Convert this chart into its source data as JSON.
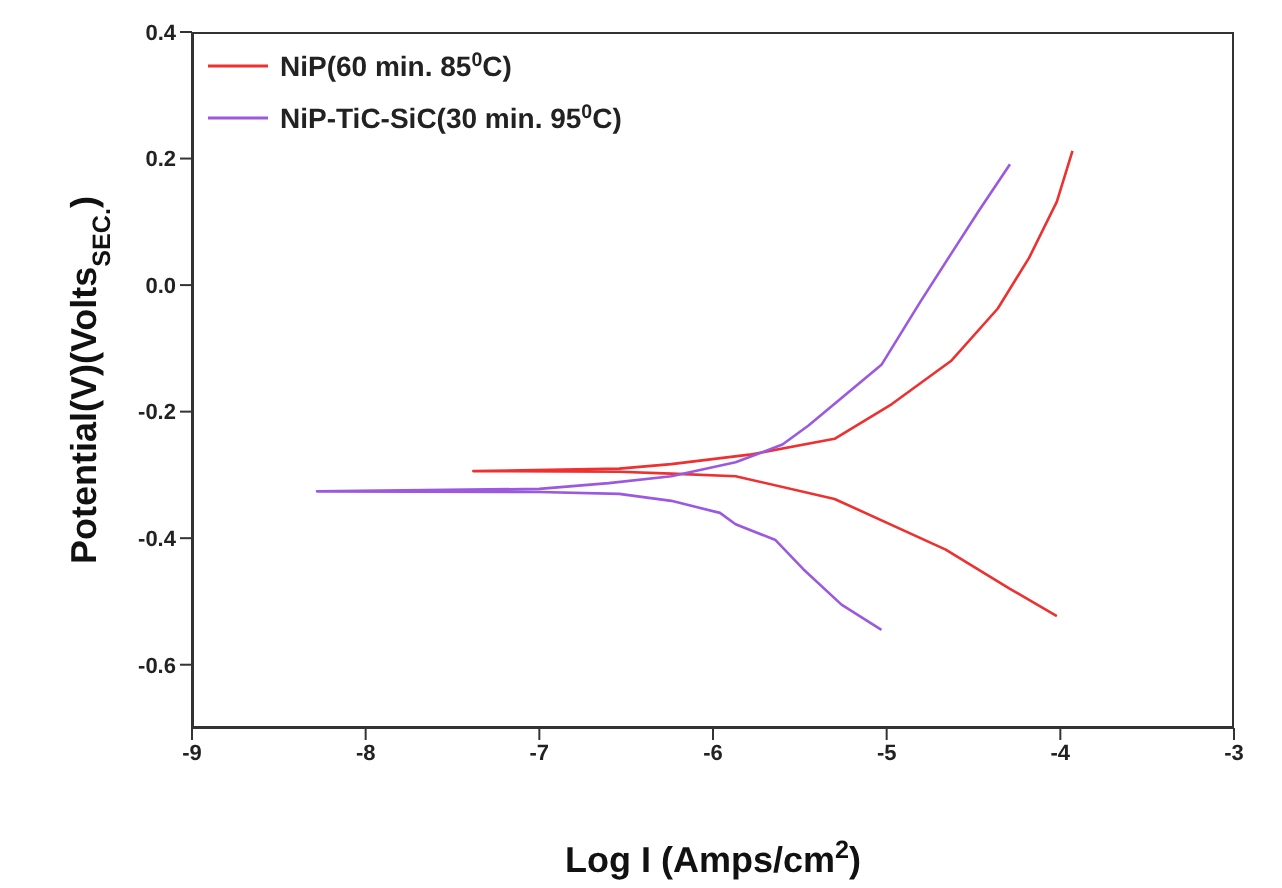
{
  "chart_data": {
    "type": "line",
    "xlabel": "Log I (Amps/cm$^{2}$)",
    "ylabel": "Potential(V)(Volts$_{SEC.}$)",
    "xlim": [
      -9,
      -3
    ],
    "xticks": [
      -9,
      -8,
      -7,
      -6,
      -5,
      -4,
      -3
    ],
    "ylim": [
      -0.7,
      0.4
    ],
    "yticks": [
      {
        "value": -0.6,
        "label": "-0.6"
      },
      {
        "value": -0.4,
        "label": "-0.4"
      },
      {
        "value": -0.2,
        "label": "-0.2"
      },
      {
        "value": 0,
        "label": "0.0"
      },
      {
        "value": 0.2,
        "label": "0.2"
      },
      {
        "value": 0.4,
        "label": "0.4"
      }
    ],
    "grid": false,
    "legend": "top left",
    "marker": "none",
    "line_style": "solid",
    "series": [
      {
        "name": "NiP(60 min. 85$^{0}$C)",
        "color": "#ee3030",
        "x": [
          -4.02,
          -4.29,
          -4.66,
          -5.3,
          -5.87,
          -6.24,
          -6.54,
          -7.38,
          -6.54,
          -6.24,
          -5.79,
          -5.3,
          -4.97,
          -4.63,
          -4.36,
          -4.18,
          -4.02,
          -3.93
        ],
        "values": [
          -0.523,
          -0.48,
          -0.418,
          -0.338,
          -0.302,
          -0.298,
          -0.295,
          -0.294,
          -0.29,
          -0.283,
          -0.268,
          -0.243,
          -0.188,
          -0.12,
          -0.037,
          0.043,
          0.132,
          0.212
        ]
      },
      {
        "name": "NiP-TiC-SiC(30 min. 95$^{0}$C)",
        "color": "#9b59e0",
        "x": [
          -5.03,
          -5.26,
          -5.48,
          -5.64,
          -5.87,
          -5.96,
          -6.24,
          -6.54,
          -7,
          -8.28,
          -7,
          -6.6,
          -6.24,
          -5.87,
          -5.6,
          -5.45,
          -5.03,
          -4.81,
          -4.63,
          -4.47,
          -4.29
        ],
        "values": [
          -0.545,
          -0.505,
          -0.449,
          -0.403,
          -0.378,
          -0.36,
          -0.341,
          -0.33,
          -0.327,
          -0.326,
          -0.322,
          -0.313,
          -0.302,
          -0.28,
          -0.252,
          -0.222,
          -0.126,
          -0.028,
          0.049,
          0.117,
          0.191
        ]
      }
    ]
  }
}
